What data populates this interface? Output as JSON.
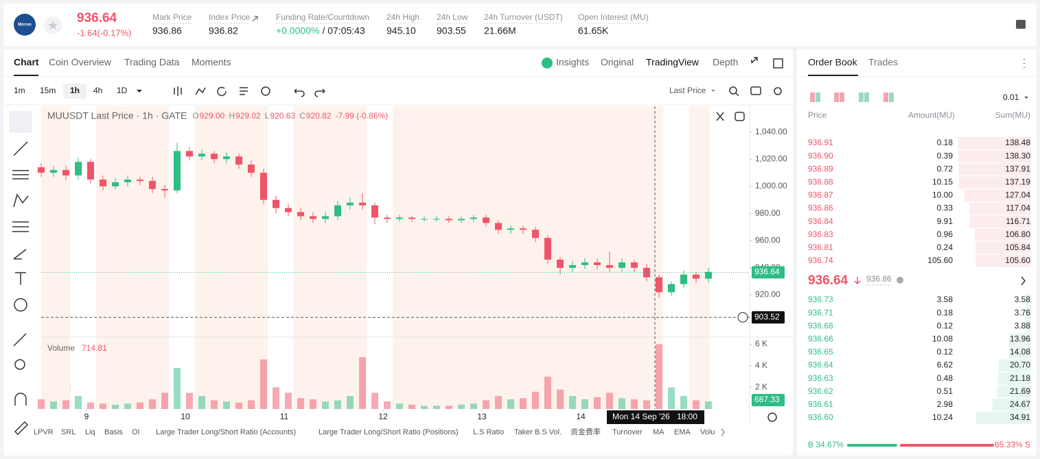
{
  "header": {
    "logo": "Micron",
    "price": "936.64",
    "change": "-1.64(-0.17%)",
    "stats": [
      {
        "label": "Mark Price",
        "value": "936.86"
      },
      {
        "label": "Index Price",
        "value": "936.82"
      },
      {
        "label": "Funding Rate/Countdown",
        "value": "+0.0000%",
        "extra": "/ 07:05:43"
      },
      {
        "label": "24h High",
        "value": "945.10"
      },
      {
        "label": "24h Low",
        "value": "903.55"
      },
      {
        "label": "24h Turnover (USDT)",
        "value": "21.66M"
      },
      {
        "label": "Open Interest (MU)",
        "value": "61.65K"
      }
    ]
  },
  "tabs": [
    "Chart",
    "Coin Overview",
    "Trading Data",
    "Moments"
  ],
  "views": [
    "Insights",
    "Original",
    "TradingView",
    "Depth"
  ],
  "intervals": [
    "1m",
    "15m",
    "1h",
    "4h",
    "1D"
  ],
  "price_source": "Last Price",
  "legend": {
    "title": "MUUSDT Last Price · 1h · GATE",
    "o": "O",
    "o_value": "929.00",
    "h": "H",
    "h_value": "929.02",
    "l": "L",
    "l_value": "920.63",
    "c": "C",
    "c_value": "920.82",
    "change": "-7.99 (-0.86%)"
  },
  "chart_data": {
    "type": "candlestick",
    "up_color": "#2ebd85",
    "down_color": "#ef5469",
    "x": [
      0,
      3,
      6,
      9,
      12,
      15,
      18,
      21,
      24,
      27,
      30,
      33,
      36,
      39,
      42,
      45,
      48,
      51,
      54,
      57,
      60,
      63,
      66,
      69,
      72,
      75,
      78,
      81,
      84,
      87,
      90,
      93,
      96,
      99,
      102,
      105,
      108,
      111,
      114,
      117,
      120,
      123,
      126,
      129,
      132,
      135,
      138,
      141,
      144,
      147,
      150,
      153,
      156,
      159,
      162
    ],
    "open": [
      1014,
      1010,
      1012,
      1008,
      1018,
      1005,
      1000,
      1003,
      1005,
      1004,
      998,
      997,
      1026,
      1022,
      1024,
      1020,
      1022,
      1016,
      1010,
      990,
      984,
      981,
      978,
      976,
      978,
      986,
      988,
      986,
      977,
      976,
      977,
      976,
      976,
      976,
      975,
      976,
      977,
      973,
      968,
      969,
      968,
      962,
      946,
      940,
      942,
      944,
      942,
      940,
      944,
      940,
      933,
      922,
      928,
      935,
      932
    ],
    "high": [
      1017,
      1015,
      1015,
      1021,
      1020,
      1008,
      1006,
      1008,
      1007,
      1007,
      1001,
      1032,
      1029,
      1027,
      1026,
      1025,
      1024,
      1019,
      1013,
      993,
      987,
      984,
      981,
      981,
      989,
      992,
      995,
      988,
      979,
      979,
      978,
      978,
      978,
      978,
      978,
      979,
      979,
      975,
      971,
      971,
      970,
      964,
      948,
      945,
      947,
      947,
      952,
      947,
      946,
      943,
      935,
      930,
      938,
      937,
      940
    ],
    "low": [
      1007,
      1007,
      1005,
      1005,
      1002,
      997,
      998,
      1000,
      1001,
      995,
      992,
      995,
      1019,
      1019,
      1017,
      1017,
      1013,
      1007,
      987,
      980,
      978,
      975,
      973,
      973,
      975,
      983,
      983,
      972,
      973,
      974,
      974,
      974,
      974,
      973,
      973,
      974,
      970,
      965,
      965,
      965,
      959,
      943,
      935,
      937,
      939,
      939,
      937,
      937,
      937,
      930,
      918,
      919,
      925,
      929,
      929
    ],
    "close": [
      1010,
      1012,
      1008,
      1018,
      1005,
      1000,
      1003,
      1005,
      1004,
      998,
      997,
      1026,
      1022,
      1024,
      1020,
      1022,
      1016,
      1010,
      990,
      984,
      981,
      978,
      976,
      978,
      986,
      988,
      986,
      977,
      976,
      977,
      976,
      976,
      976,
      975,
      976,
      977,
      973,
      968,
      969,
      968,
      962,
      946,
      940,
      942,
      944,
      942,
      940,
      944,
      940,
      933,
      922,
      928,
      935,
      932,
      937
    ],
    "volume": [
      900,
      700,
      800,
      1200,
      600,
      500,
      400,
      500,
      600,
      900,
      1500,
      3800,
      1500,
      1200,
      800,
      700,
      600,
      800,
      4600,
      2000,
      1500,
      1000,
      900,
      700,
      800,
      1200,
      4800,
      1500,
      700,
      500,
      400,
      300,
      300,
      300,
      400,
      500,
      800,
      1200,
      900,
      1000,
      1600,
      3000,
      1800,
      1200,
      900,
      1100,
      1500,
      1000,
      900,
      800,
      6000,
      2000,
      1200,
      800,
      700
    ],
    "xlim": [
      0,
      172
    ],
    "xticks": [
      {
        "value": 11,
        "label": "9"
      },
      {
        "value": 35,
        "label": "10"
      },
      {
        "value": 59,
        "label": "11"
      },
      {
        "value": 83,
        "label": "12"
      },
      {
        "value": 107,
        "label": "13"
      },
      {
        "value": 131,
        "label": "14"
      }
    ],
    "ylim": [
      889,
      1059
    ],
    "yticks": [
      {
        "value": 920,
        "label": "920.00"
      },
      {
        "value": 940,
        "label": "940.00"
      },
      {
        "value": 960,
        "label": "960.00"
      },
      {
        "value": 980,
        "label": "980.00"
      },
      {
        "value": 1000,
        "label": "1,000.00"
      },
      {
        "value": 1020,
        "label": "1,020.00"
      },
      {
        "value": 1040,
        "label": "1,040.00"
      }
    ],
    "vlim": [
      0,
      6667
    ],
    "vticks": [
      {
        "value": 2000,
        "label": "2 K"
      },
      {
        "value": 4000,
        "label": "4 K"
      },
      {
        "value": 6000,
        "label": "6 K"
      }
    ],
    "last_price": {
      "value": 936.64,
      "label": "936.64"
    },
    "cross_price": {
      "value": 903.52,
      "label": "903.52"
    },
    "volume_title": "Volume",
    "volume_value": "714.81",
    "volume_last": "687.33",
    "crosshair": {
      "x": 149,
      "date": "Mon 14 Sep '26",
      "time": "18:00"
    }
  },
  "indicators": [
    "LPVR",
    "SRL",
    "Liq",
    "Basis",
    "OI",
    "Large Trader Long/Short Ratio (Accounts)",
    "Large Trader Long/Short Ratio (Positions)",
    "L.S Ratio",
    "Taker B.S Vol.",
    "资金费率",
    "Turnover",
    "MA",
    "EMA",
    "Volu"
  ],
  "order_book": {
    "tabs": [
      "Order Book",
      "Trades"
    ],
    "precision": "0.01",
    "columns": [
      "Price",
      "Amount(MU)",
      "Sum(MU)"
    ],
    "asks": [
      [
        "936.91",
        "0.18",
        "138.48"
      ],
      [
        "936.90",
        "0.39",
        "138.30"
      ],
      [
        "936.89",
        "0.72",
        "137.91"
      ],
      [
        "936.88",
        "10.15",
        "137.19"
      ],
      [
        "936.87",
        "10.00",
        "127.04"
      ],
      [
        "936.86",
        "0.33",
        "117.04"
      ],
      [
        "936.84",
        "9.91",
        "116.71"
      ],
      [
        "936.83",
        "0.96",
        "106.80"
      ],
      [
        "936.81",
        "0.24",
        "105.84"
      ],
      [
        "936.74",
        "105.60",
        "105.60"
      ]
    ],
    "mid_price": "936.64",
    "mark_price": "936.86",
    "bids": [
      [
        "936.73",
        "3.58",
        "3.58"
      ],
      [
        "936.71",
        "0.18",
        "3.76"
      ],
      [
        "936.68",
        "0.12",
        "3.88"
      ],
      [
        "936.66",
        "10.08",
        "13.96"
      ],
      [
        "936.65",
        "0.12",
        "14.08"
      ],
      [
        "936.64",
        "6.62",
        "20.70"
      ],
      [
        "936.63",
        "0.48",
        "21.18"
      ],
      [
        "936.62",
        "0.51",
        "21.69"
      ],
      [
        "936.61",
        "2.98",
        "24.67"
      ],
      [
        "936.60",
        "10.24",
        "34.91"
      ]
    ],
    "buy": {
      "value": 34.67,
      "label": "B 34.67%"
    },
    "sell": {
      "value": 65.33,
      "label": "65.33% S"
    }
  }
}
